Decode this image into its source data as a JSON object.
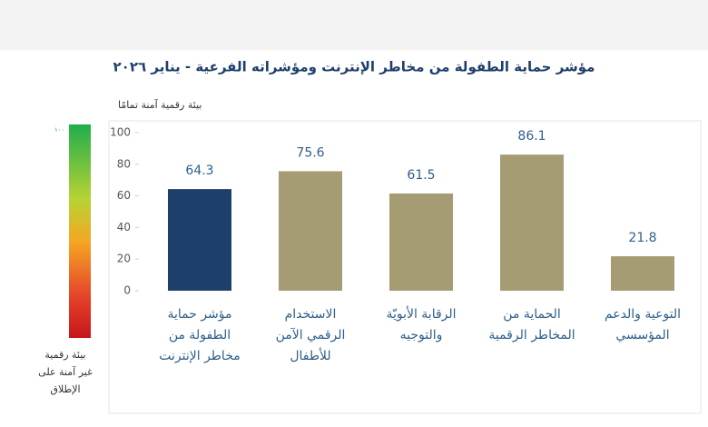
{
  "chart_data": {
    "type": "bar",
    "title": "مؤشر حماية الطفولة من مخاطر الإنترنت ومؤشراته الفرعية - يناير ٢٠٢٦",
    "scale_top_label": "بيئة رقمية آمنة تمامًا",
    "scale_top_value_label": "١٠٠",
    "scale_bottom_label": [
      "بيئة رقمية",
      "غير آمنة على",
      "الإطلاق"
    ],
    "categories": [
      [
        "مؤشر حماية",
        "الطفولة من",
        "مخاطر الإنترنت"
      ],
      [
        "الاستخدام",
        "الرقمي الآمن",
        "للأطفال"
      ],
      [
        "الرقابة الأبويّة",
        "والتوجيه"
      ],
      [
        "الحماية من",
        "المخاطر الرقمية"
      ],
      [
        "التوعية والدعم",
        "المؤسسي"
      ]
    ],
    "values": [
      64.3,
      75.6,
      61.5,
      86.1,
      21.8
    ],
    "colors": [
      "#1f3f6b",
      "#a69c74",
      "#a69c74",
      "#a69c74",
      "#a69c74"
    ],
    "ylim": [
      0,
      100
    ],
    "yticks": [
      0,
      20,
      40,
      60,
      80,
      100
    ],
    "grid": false
  }
}
